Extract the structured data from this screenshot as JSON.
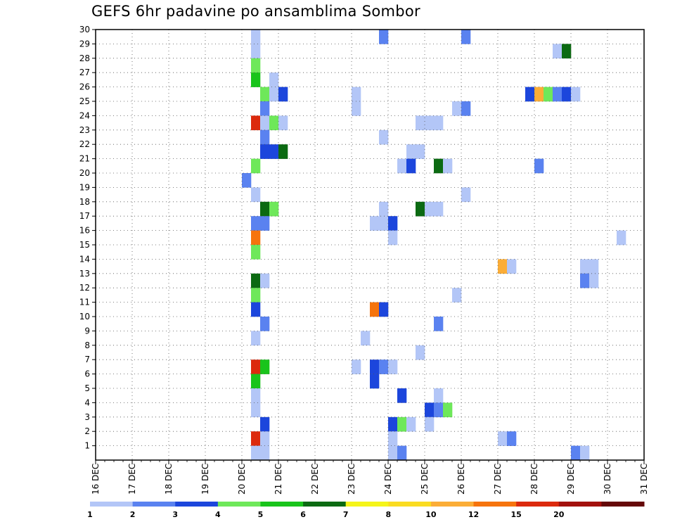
{
  "chart_data": {
    "type": "heatmap",
    "title": "GEFS 6hr padavine po ansamblima Sombor",
    "x_tick_labels": [
      "16 DEC",
      "17 DEC",
      "18 DEC",
      "19 DEC",
      "20 DEC",
      "21 DEC",
      "22 DEC",
      "23 DEC",
      "24 DEC",
      "25 DEC",
      "26 DEC",
      "27 DEC",
      "28 DEC",
      "29 DEC",
      "30 DEC",
      "31 DEC"
    ],
    "x_day_range": [
      16,
      31
    ],
    "y_tick_labels": [
      "1",
      "2",
      "3",
      "4",
      "5",
      "6",
      "7",
      "8",
      "9",
      "10",
      "11",
      "12",
      "13",
      "14",
      "15",
      "16",
      "17",
      "18",
      "19",
      "20",
      "21",
      "22",
      "23",
      "24",
      "25",
      "26",
      "27",
      "28",
      "29",
      "30"
    ],
    "y_range": [
      0,
      30
    ],
    "grid": true,
    "step_hours": 6,
    "colorbar": {
      "labels": [
        "1",
        "2",
        "3",
        "4",
        "5",
        "6",
        "7",
        "8",
        "10",
        "12",
        "15",
        "20"
      ],
      "colors": [
        "#b3c6f7",
        "#5a82f0",
        "#1c46dc",
        "#6ee85a",
        "#19c41b",
        "#0b6a12",
        "#f5f51a",
        "#fadc21",
        "#fbad37",
        "#f6740d",
        "#dc2a0d",
        "#a3110d",
        "#650808"
      ]
    },
    "cells": [
      {
        "member": 30,
        "day": 20.25,
        "level": 0
      },
      {
        "member": 30,
        "day": 23.75,
        "level": 1
      },
      {
        "member": 30,
        "day": 26.0,
        "level": 1
      },
      {
        "member": 29,
        "day": 20.25,
        "level": 0
      },
      {
        "member": 29,
        "day": 28.5,
        "level": 0
      },
      {
        "member": 29,
        "day": 28.75,
        "level": 5
      },
      {
        "member": 28,
        "day": 20.25,
        "level": 3
      },
      {
        "member": 27,
        "day": 20.25,
        "level": 4
      },
      {
        "member": 27,
        "day": 20.75,
        "level": 0
      },
      {
        "member": 26,
        "day": 20.5,
        "level": 3
      },
      {
        "member": 26,
        "day": 20.75,
        "level": 0
      },
      {
        "member": 26,
        "day": 21.0,
        "level": 2
      },
      {
        "member": 26,
        "day": 23.0,
        "level": 0
      },
      {
        "member": 26,
        "day": 27.75,
        "level": 2
      },
      {
        "member": 26,
        "day": 28.0,
        "level": 8
      },
      {
        "member": 26,
        "day": 28.25,
        "level": 3
      },
      {
        "member": 26,
        "day": 28.5,
        "level": 1
      },
      {
        "member": 26,
        "day": 28.75,
        "level": 2
      },
      {
        "member": 26,
        "day": 29.0,
        "level": 0
      },
      {
        "member": 25,
        "day": 20.5,
        "level": 1
      },
      {
        "member": 25,
        "day": 23.0,
        "level": 0
      },
      {
        "member": 25,
        "day": 25.75,
        "level": 0
      },
      {
        "member": 25,
        "day": 26.0,
        "level": 1
      },
      {
        "member": 24,
        "day": 20.25,
        "level": 10
      },
      {
        "member": 24,
        "day": 20.5,
        "level": 0
      },
      {
        "member": 24,
        "day": 20.75,
        "level": 3
      },
      {
        "member": 24,
        "day": 21.0,
        "level": 0
      },
      {
        "member": 24,
        "day": 24.75,
        "level": 0
      },
      {
        "member": 24,
        "day": 25.0,
        "level": 0
      },
      {
        "member": 24,
        "day": 25.25,
        "level": 0
      },
      {
        "member": 23,
        "day": 20.5,
        "level": 1
      },
      {
        "member": 23,
        "day": 23.75,
        "level": 0
      },
      {
        "member": 22,
        "day": 20.5,
        "level": 2
      },
      {
        "member": 22,
        "day": 20.75,
        "level": 2
      },
      {
        "member": 22,
        "day": 21.0,
        "level": 5
      },
      {
        "member": 22,
        "day": 24.5,
        "level": 0
      },
      {
        "member": 22,
        "day": 24.75,
        "level": 0
      },
      {
        "member": 21,
        "day": 20.25,
        "level": 3
      },
      {
        "member": 21,
        "day": 24.25,
        "level": 0
      },
      {
        "member": 21,
        "day": 24.5,
        "level": 2
      },
      {
        "member": 21,
        "day": 25.25,
        "level": 5
      },
      {
        "member": 21,
        "day": 25.5,
        "level": 0
      },
      {
        "member": 21,
        "day": 28.0,
        "level": 1
      },
      {
        "member": 20,
        "day": 20.0,
        "level": 1
      },
      {
        "member": 19,
        "day": 20.25,
        "level": 0
      },
      {
        "member": 19,
        "day": 26.0,
        "level": 0
      },
      {
        "member": 18,
        "day": 20.5,
        "level": 5
      },
      {
        "member": 18,
        "day": 20.75,
        "level": 3
      },
      {
        "member": 18,
        "day": 23.75,
        "level": 0
      },
      {
        "member": 18,
        "day": 24.75,
        "level": 5
      },
      {
        "member": 18,
        "day": 25.0,
        "level": 0
      },
      {
        "member": 18,
        "day": 25.25,
        "level": 0
      },
      {
        "member": 17,
        "day": 20.25,
        "level": 1
      },
      {
        "member": 17,
        "day": 20.5,
        "level": 1
      },
      {
        "member": 17,
        "day": 23.5,
        "level": 0
      },
      {
        "member": 17,
        "day": 23.75,
        "level": 0
      },
      {
        "member": 17,
        "day": 24.0,
        "level": 2
      },
      {
        "member": 16,
        "day": 20.25,
        "level": 9
      },
      {
        "member": 16,
        "day": 24.0,
        "level": 0
      },
      {
        "member": 16,
        "day": 30.25,
        "level": 0
      },
      {
        "member": 15,
        "day": 20.25,
        "level": 3
      },
      {
        "member": 14,
        "day": 27.0,
        "level": 8
      },
      {
        "member": 14,
        "day": 27.25,
        "level": 0
      },
      {
        "member": 14,
        "day": 29.25,
        "level": 0
      },
      {
        "member": 14,
        "day": 29.5,
        "level": 0
      },
      {
        "member": 13,
        "day": 20.25,
        "level": 5
      },
      {
        "member": 13,
        "day": 20.5,
        "level": 0
      },
      {
        "member": 13,
        "day": 29.25,
        "level": 1
      },
      {
        "member": 13,
        "day": 29.5,
        "level": 0
      },
      {
        "member": 12,
        "day": 20.25,
        "level": 3
      },
      {
        "member": 12,
        "day": 25.75,
        "level": 0
      },
      {
        "member": 11,
        "day": 20.25,
        "level": 2
      },
      {
        "member": 11,
        "day": 23.5,
        "level": 9
      },
      {
        "member": 11,
        "day": 23.75,
        "level": 2
      },
      {
        "member": 10,
        "day": 20.5,
        "level": 1
      },
      {
        "member": 10,
        "day": 25.25,
        "level": 1
      },
      {
        "member": 9,
        "day": 20.25,
        "level": 0
      },
      {
        "member": 9,
        "day": 23.25,
        "level": 0
      },
      {
        "member": 8,
        "day": 24.75,
        "level": 0
      },
      {
        "member": 7,
        "day": 20.25,
        "level": 10
      },
      {
        "member": 7,
        "day": 20.5,
        "level": 4
      },
      {
        "member": 7,
        "day": 23.0,
        "level": 0
      },
      {
        "member": 7,
        "day": 23.5,
        "level": 2
      },
      {
        "member": 7,
        "day": 23.75,
        "level": 1
      },
      {
        "member": 7,
        "day": 24.0,
        "level": 0
      },
      {
        "member": 6,
        "day": 20.25,
        "level": 4
      },
      {
        "member": 6,
        "day": 23.5,
        "level": 2
      },
      {
        "member": 5,
        "day": 20.25,
        "level": 0
      },
      {
        "member": 5,
        "day": 24.25,
        "level": 2
      },
      {
        "member": 5,
        "day": 25.25,
        "level": 0
      },
      {
        "member": 4,
        "day": 20.25,
        "level": 0
      },
      {
        "member": 4,
        "day": 25.0,
        "level": 2
      },
      {
        "member": 4,
        "day": 25.25,
        "level": 1
      },
      {
        "member": 4,
        "day": 25.5,
        "level": 3
      },
      {
        "member": 3,
        "day": 20.5,
        "level": 2
      },
      {
        "member": 3,
        "day": 24.0,
        "level": 2
      },
      {
        "member": 3,
        "day": 24.25,
        "level": 3
      },
      {
        "member": 3,
        "day": 24.5,
        "level": 0
      },
      {
        "member": 3,
        "day": 25.0,
        "level": 0
      },
      {
        "member": 2,
        "day": 20.25,
        "level": 10
      },
      {
        "member": 2,
        "day": 20.5,
        "level": 0
      },
      {
        "member": 2,
        "day": 24.0,
        "level": 0
      },
      {
        "member": 2,
        "day": 27.0,
        "level": 0
      },
      {
        "member": 2,
        "day": 27.25,
        "level": 1
      },
      {
        "member": 1,
        "day": 20.25,
        "level": 0
      },
      {
        "member": 1,
        "day": 20.5,
        "level": 0
      },
      {
        "member": 1,
        "day": 24.0,
        "level": 0
      },
      {
        "member": 1,
        "day": 24.25,
        "level": 1
      },
      {
        "member": 1,
        "day": 29.0,
        "level": 1
      },
      {
        "member": 1,
        "day": 29.25,
        "level": 0
      }
    ]
  }
}
